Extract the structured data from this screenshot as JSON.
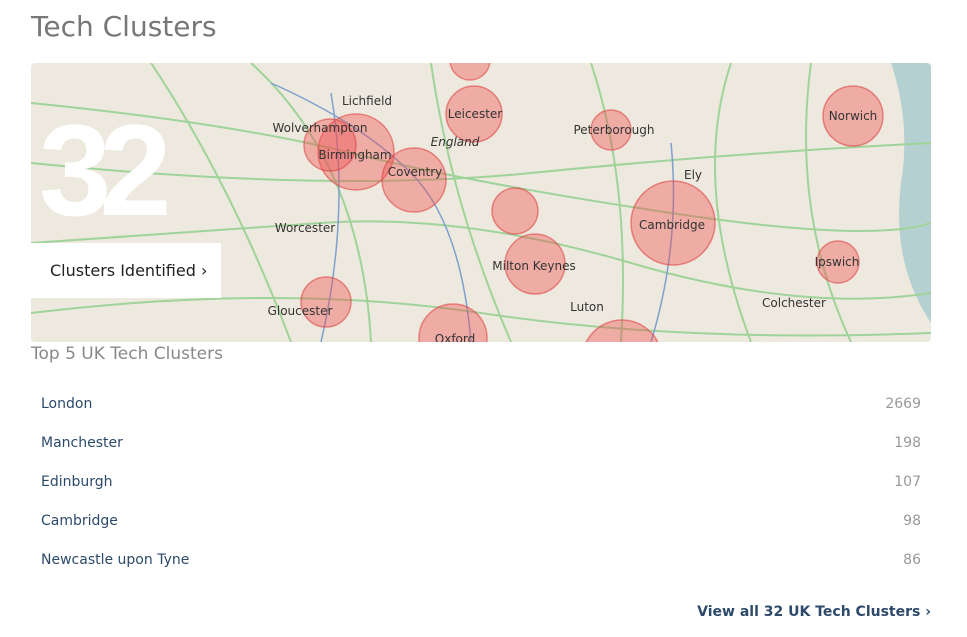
{
  "header": {
    "title": "Tech Clusters"
  },
  "map": {
    "count": "32",
    "link": "Clusters Identified ›",
    "labels": [
      "Lichfield",
      "Wolverhampton",
      "Leicester",
      "Birmingham",
      "England",
      "Coventry",
      "Peterborough",
      "Norwich",
      "Ely",
      "Cambridge",
      "Worcester",
      "Milton Keynes",
      "Ipswich",
      "Luton",
      "Colchester",
      "Gloucester",
      "Oxford"
    ]
  },
  "list": {
    "title": "Top 5 UK Tech Clusters",
    "rows": [
      [
        "London",
        "2669"
      ],
      [
        "Manchester",
        "198"
      ],
      [
        "Edinburgh",
        "107"
      ],
      [
        "Cambridge",
        "98"
      ],
      [
        "Newcastle upon Tyne",
        "86"
      ]
    ]
  },
  "footer": {
    "link": "View all 32 UK Tech Clusters ›"
  }
}
